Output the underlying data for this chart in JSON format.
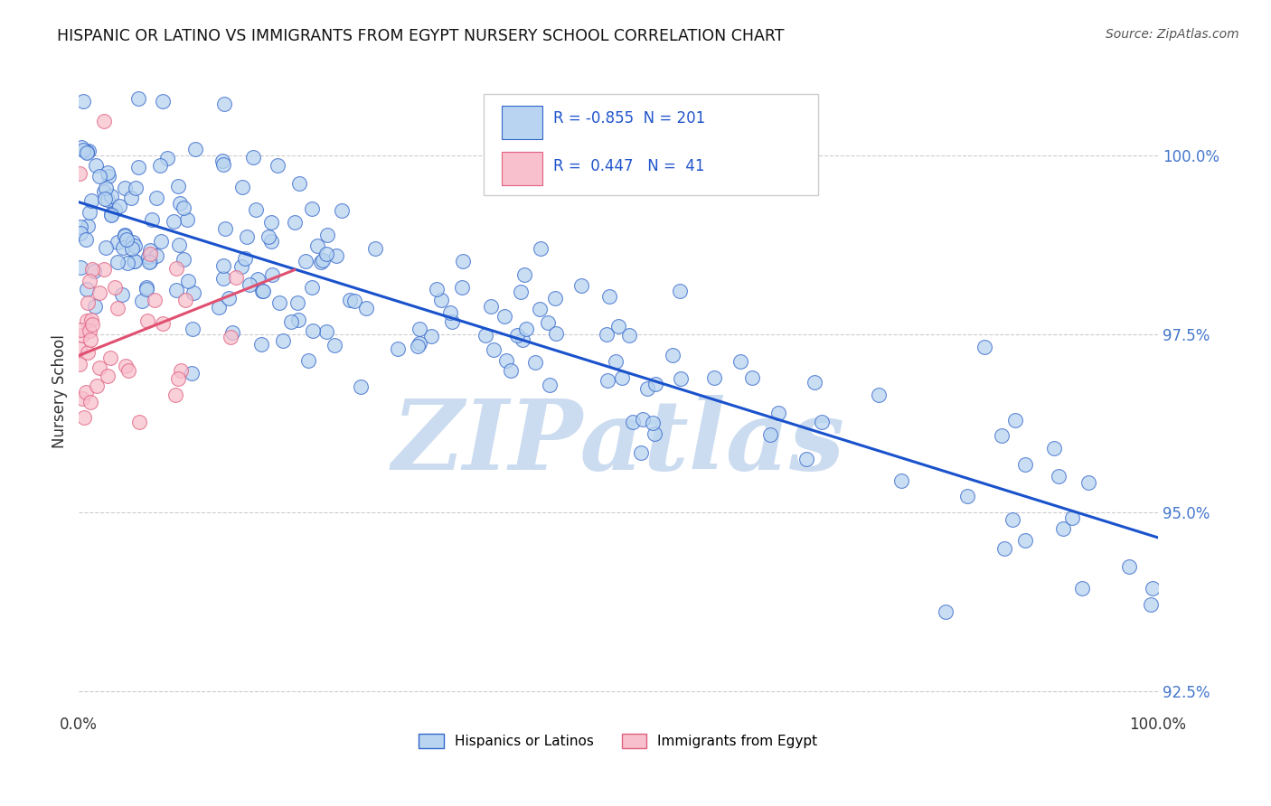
{
  "title": "HISPANIC OR LATINO VS IMMIGRANTS FROM EGYPT NURSERY SCHOOL CORRELATION CHART",
  "source_text": "Source: ZipAtlas.com",
  "ylabel": "Nursery School",
  "legend_label_1": "Hispanics or Latinos",
  "legend_label_2": "Immigrants from Egypt",
  "R1": -0.855,
  "N1": 201,
  "R2": 0.447,
  "N2": 41,
  "color_blue_fill": "#b8d4f0",
  "color_blue_edge": "#3366cc",
  "color_pink_fill": "#f8c0cc",
  "color_pink_edge": "#e06080",
  "color_blue_line": "#1a52cc",
  "color_pink_line": "#e05070",
  "watermark": "ZIPatlas",
  "watermark_color": "#ccdcf0",
  "xlim": [
    0,
    100
  ],
  "ylim": [
    92.2,
    101.2
  ],
  "yticks": [
    92.5,
    95.0,
    97.5,
    100.0
  ],
  "ytick_labels": [
    "92.5%",
    "95.0%",
    "97.5%",
    "100.0%"
  ],
  "xtick_labels": [
    "0.0%",
    "",
    "",
    "",
    "100.0%"
  ],
  "blue_intercept": 99.35,
  "blue_slope": -0.047,
  "pink_intercept": 97.2,
  "pink_slope": 0.06
}
